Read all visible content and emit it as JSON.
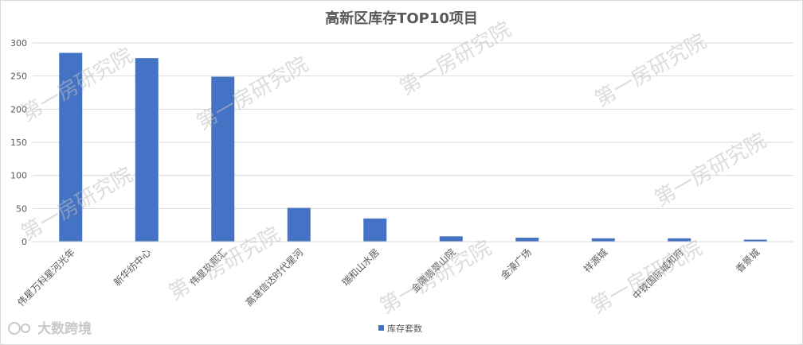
{
  "chart_data": {
    "type": "bar",
    "title": "高新区库存TOP10项目",
    "categories": [
      "伟星万科星河光年",
      "新华纺中心",
      "伟星玖熙汇",
      "高速信达时代星河",
      "瑞和山水居",
      "金隅翡翠山院",
      "金濠广场",
      "祥源城",
      "中铁国际城和府",
      "香景城"
    ],
    "series": [
      {
        "name": "库存套数",
        "values": [
          285,
          277,
          249,
          51,
          35,
          8,
          6,
          5,
          5,
          3
        ]
      }
    ],
    "ylim": [
      0,
      300
    ],
    "yticks": [
      0,
      50,
      100,
      150,
      200,
      250,
      300
    ],
    "grid": true,
    "legend_position": "bottom",
    "bar_color": "#4472c4"
  },
  "watermark": {
    "text": "第一房研究院",
    "logo_text": "大数跨境"
  }
}
